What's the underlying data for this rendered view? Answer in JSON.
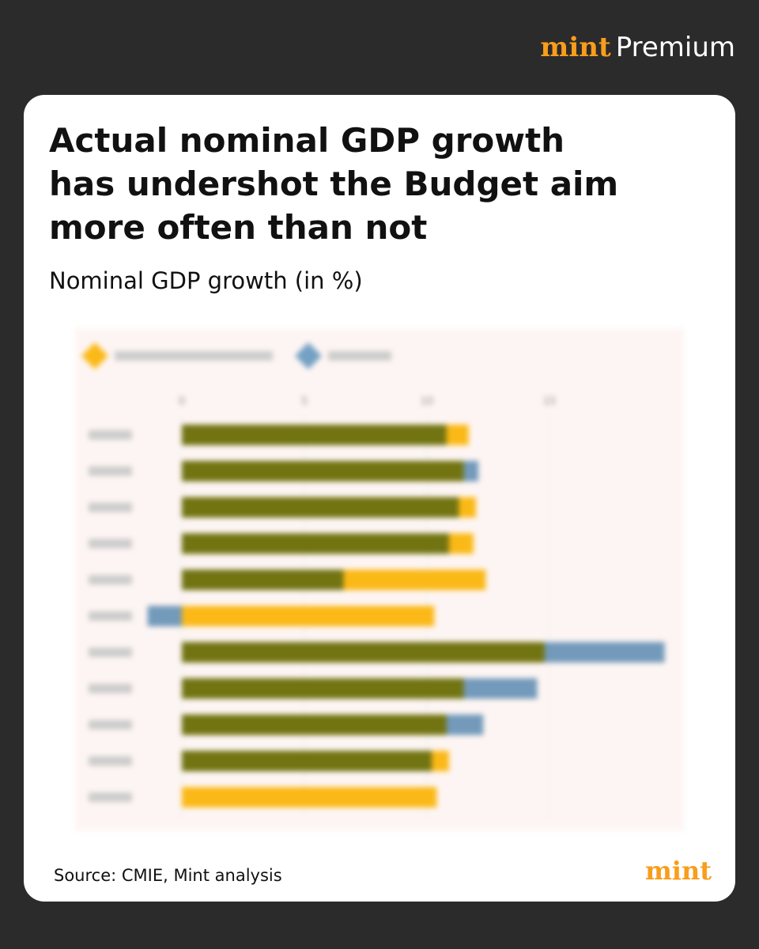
{
  "brand": {
    "name": "mint",
    "tag": "Premium"
  },
  "chart_data": {
    "type": "bar",
    "orientation": "horizontal",
    "title": "Actual nominal GDP growth has undershot the Budget aim more often than not",
    "subtitle": "Nominal GDP growth (in %)",
    "source": "Source: CMIE, Mint analysis",
    "categories": [
      null,
      null,
      null,
      null,
      null,
      null,
      null,
      null,
      null,
      null,
      null
    ],
    "series": [
      {
        "color": "#fbb917",
        "values": [
          11.7,
          11.5,
          12.0,
          11.9,
          12.4,
          10.3,
          14.8,
          11.5,
          10.8,
          10.9,
          10.4
        ]
      },
      {
        "color": "#74a0c4",
        "values": [
          10.8,
          12.1,
          11.3,
          10.9,
          6.6,
          -1.4,
          19.7,
          14.5,
          12.3,
          10.2,
          null
        ]
      }
    ],
    "xlim": [
      -2,
      20
    ],
    "xticks": [
      0,
      5,
      10,
      15
    ],
    "grid": true,
    "blurred": true
  },
  "footer": {
    "logo": "mint"
  }
}
